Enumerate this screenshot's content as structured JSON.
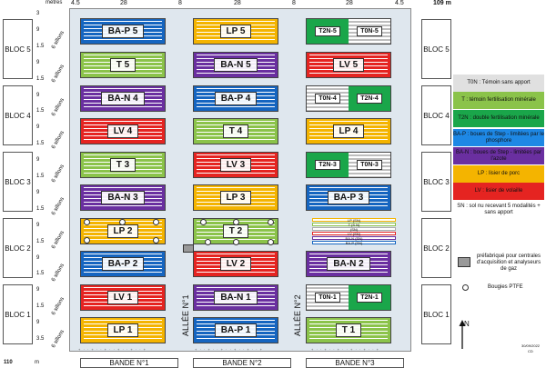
{
  "scale": {
    "top_label": "mètres",
    "left_edge": "4.5",
    "band_width_1": "28",
    "gap_1": "8",
    "band_width_2": "28",
    "gap_2": "8",
    "band_width_3": "28",
    "right_edge": "4.5",
    "total_width": "109 m",
    "total_height": "110",
    "height_unit": "m"
  },
  "row_labels": [
    "3",
    "9",
    "1.5",
    "9",
    "1.5",
    "9",
    "1.5",
    "9",
    "1.5",
    "9",
    "1.5",
    "9",
    "1.5",
    "9",
    "1.5",
    "9",
    "1.5",
    "9",
    "1.5",
    "9",
    "3.5"
  ],
  "sillons_label": "6 sillons",
  "blocs": [
    "BLOC 5",
    "BLOC 4",
    "BLOC 3",
    "BLOC 2",
    "BLOC 1"
  ],
  "bandes": [
    "BANDE N°1",
    "BANDE N°2",
    "BANDE N°3"
  ],
  "allees": [
    "ALLÉE N°1",
    "ALLÉE N°2"
  ],
  "plots": {
    "band1": [
      "BA-P 5",
      "T 5",
      "BA-N 4",
      "LV 4",
      "T 3",
      "BA-N 3",
      "LP 2",
      "BA-P 2",
      "LV 1",
      "LP 1"
    ],
    "band2": [
      "LP 5",
      "BA-N 5",
      "BA-P 4",
      "T 4",
      "LV 3",
      "LP 3",
      "T 2",
      "LV 2",
      "BA-N 1",
      "BA-P 1"
    ],
    "band3_single": [
      "LV 5",
      "LP 4",
      "BA-P 3",
      "BA-N 2",
      "T 1"
    ],
    "band3_split": [
      [
        "T2N-5",
        "T0N-5"
      ],
      [
        "T0N-4",
        "T2N-4"
      ],
      [
        "T2N-3",
        "T0N-3"
      ],
      [
        "T0N-1",
        "T2N-1"
      ]
    ]
  },
  "sn_rows": [
    "LP (SN)",
    "T (S N)",
    "(SN)",
    "LV (SN)",
    "BA-N (SN)",
    "BA-P (SN)"
  ],
  "colors": {
    "BA-P": "#1565c0",
    "T": "#8bc34a",
    "BA-N": "#6a2fa0",
    "LV": "#e52421",
    "LP": "#f4b400",
    "T2N": "#1aa64a",
    "T0N": "#bdbdbd"
  },
  "legend": [
    {
      "text": "T0N : Témoin sans apport",
      "bg": "#e0e0e0"
    },
    {
      "text": "T : témoin fertilisation minérale",
      "bg": "#8bc34a"
    },
    {
      "text": "T2N : double fertilisation minérale",
      "bg": "#1aa64a"
    },
    {
      "text": "BA-P : boues de Step - limitées par le phosphore",
      "bg": "#1e88e5"
    },
    {
      "text": "BA-N : boues de Step - limitées par l'azote",
      "bg": "#6a2fa0"
    },
    {
      "text": "LP : lisier de porc",
      "bg": "#f4b400"
    },
    {
      "text": "LV : lisier de volaille",
      "bg": "#e52421"
    }
  ],
  "legend_sn": "SN : sol nu recevant 5 modalités + sans apport",
  "prefab_label": "préfabriqué pour centrales d'acquisition et analyseurs de gaz",
  "bougies_label": "Bougies PTFE",
  "north_label": "N",
  "date": "30/09/2022",
  "author": "CD",
  "tick_marks": "+ · · + · · + · · + · · + · · +"
}
